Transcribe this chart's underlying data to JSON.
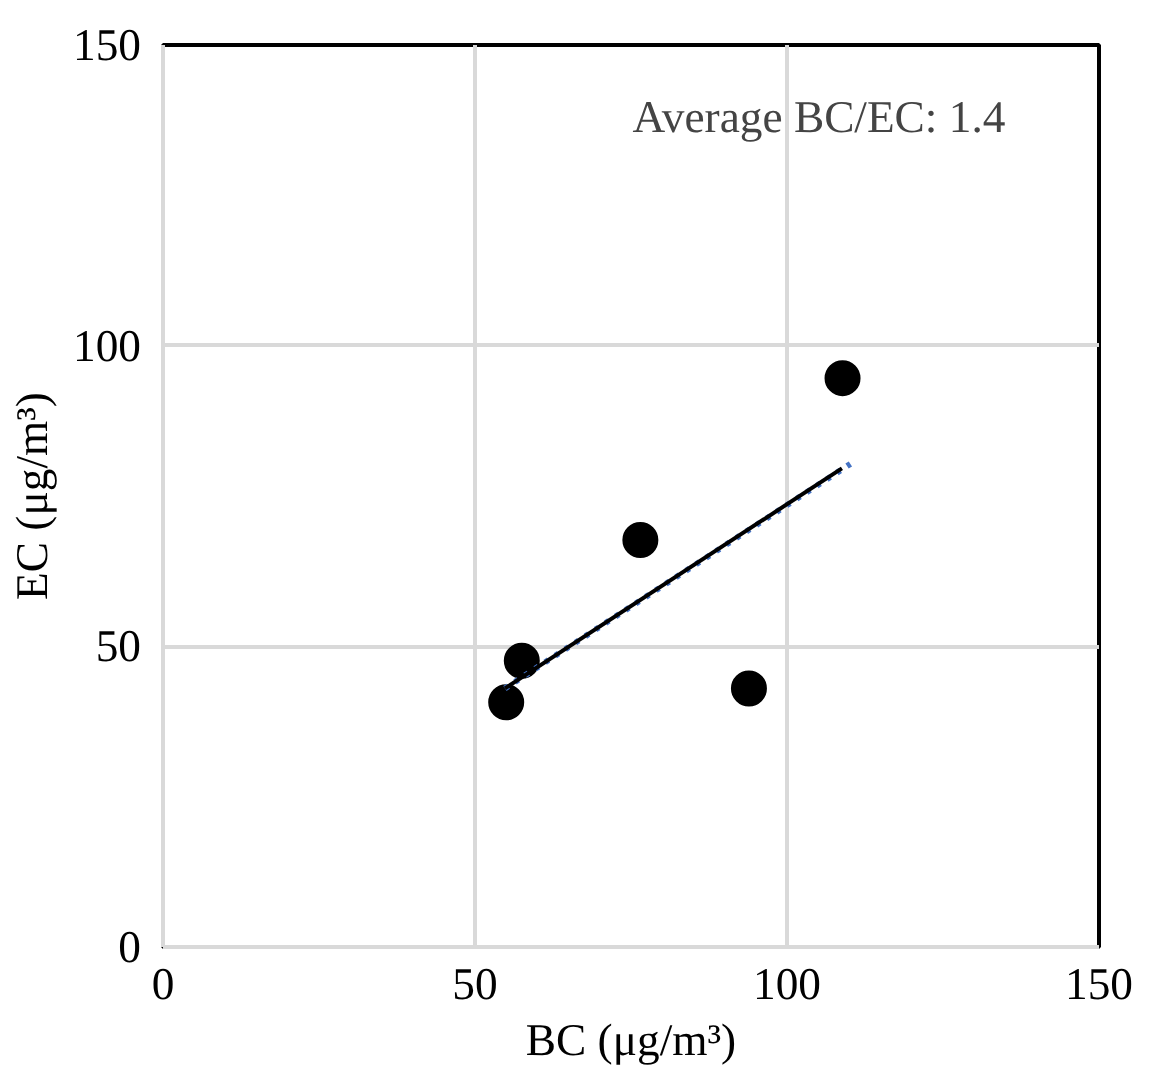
{
  "chart_data": {
    "type": "scatter",
    "xlabel": "BC (μg/m³)",
    "ylabel": "EC (μg/m³)",
    "annotations": [
      "Average BC/EC: 1.4"
    ],
    "xlim": [
      0,
      150
    ],
    "xticks": [
      0,
      50,
      100,
      150
    ],
    "ylim": [
      0,
      150
    ],
    "yticks": [
      0,
      50,
      100,
      150
    ],
    "grid": true,
    "series": [
      {
        "marker": "circle",
        "color": "#000000",
        "x": [
          55.0,
          57.5,
          76.5,
          93.9,
          108.9
        ],
        "values": [
          40.7,
          47.6,
          67.7,
          43.0,
          94.6
        ]
      },
      {
        "type": "line",
        "marker": "none",
        "color": "#4472c4",
        "line_style": "dotted",
        "x": [
          54.8,
          110.7
        ],
        "values": [
          43.0,
          80.7
        ]
      },
      {
        "type": "line",
        "marker": "none",
        "color": "#000000",
        "line_style": "solid",
        "x": [
          54.8,
          108.8
        ],
        "values": [
          43.0,
          79.6
        ]
      }
    ]
  }
}
